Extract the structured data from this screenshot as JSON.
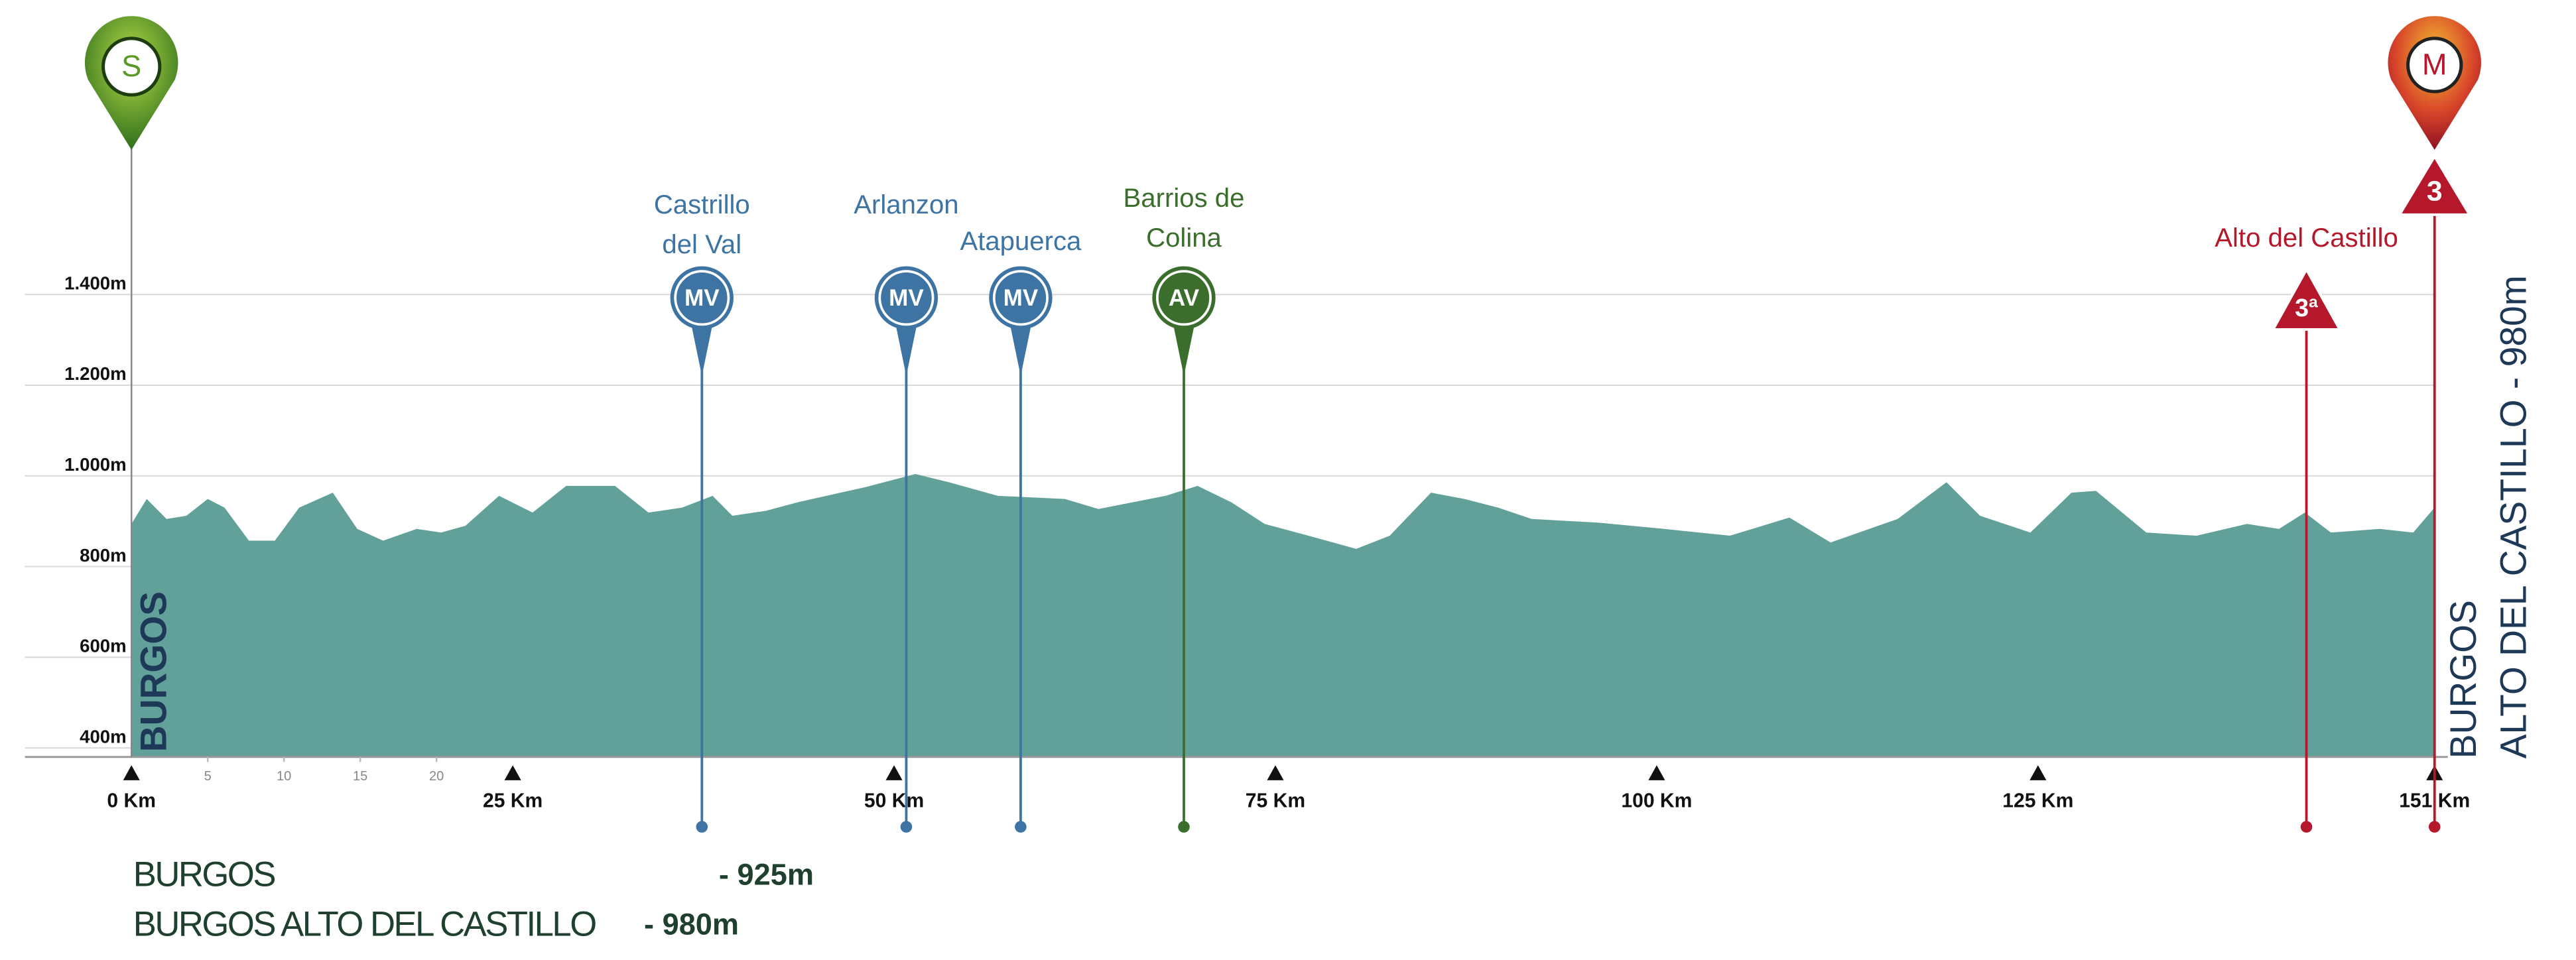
{
  "chart_data": {
    "type": "area",
    "color": "#62a09a",
    "x": [
      0,
      1,
      2.3,
      3.6,
      5,
      6.1,
      7.7,
      9.4,
      11,
      13.2,
      14.8,
      16.5,
      18.7,
      20.3,
      21.9,
      24.1,
      26.3,
      28.5,
      31.7,
      33.9,
      36.1,
      38.1,
      39.4,
      41.6,
      43.7,
      48.1,
      51.4,
      53.6,
      56.8,
      61.2,
      63.4,
      67.8,
      69.9,
      72.1,
      74.3,
      77.6,
      80.3,
      82.5,
      85.2,
      87.4,
      89.6,
      91.8,
      96.1,
      100.5,
      104.8,
      108.7,
      111.4,
      115.8,
      119,
      121.2,
      124.5,
      127.2,
      128.8,
      132.1,
      135.4,
      138.7,
      140.8,
      142.5,
      144.2,
      147.4,
      149.6,
      151
    ],
    "values": [
      894,
      949,
      905,
      912,
      949,
      930,
      857,
      857,
      930,
      963,
      883,
      857,
      883,
      875,
      890,
      956,
      919,
      978,
      978,
      919,
      930,
      956,
      912,
      923,
      942,
      975,
      1004,
      986,
      956,
      949,
      927,
      956,
      978,
      942,
      894,
      864,
      839,
      868,
      963,
      949,
      930,
      905,
      897,
      883,
      868,
      908,
      853,
      905,
      986,
      912,
      875,
      963,
      967,
      875,
      868,
      894,
      883,
      919,
      875,
      883,
      875,
      930
    ],
    "xlim": [
      0,
      151
    ],
    "ylim": [
      380,
      1400
    ],
    "xticks": [
      {
        "value": 0,
        "label": "0 Km"
      },
      {
        "value": 25,
        "label": "25 Km"
      },
      {
        "value": 50,
        "label": "50 Km"
      },
      {
        "value": 75,
        "label": "75 Km"
      },
      {
        "value": 100,
        "label": "100 Km"
      },
      {
        "value": 125,
        "label": "125 Km"
      },
      {
        "value": 151,
        "label": "151 Km"
      }
    ],
    "xminor_ticks": [
      5,
      10,
      15,
      20
    ],
    "yticks": [
      {
        "value": 400,
        "label": "400m"
      },
      {
        "value": 600,
        "label": "600m"
      },
      {
        "value": 800,
        "label": "800m"
      },
      {
        "value": 1000,
        "label": "1.000m"
      },
      {
        "value": 1200,
        "label": "1.200m"
      },
      {
        "value": 1400,
        "label": "1.400m"
      }
    ],
    "grid": true,
    "markers": [
      {
        "name_lines": [
          "Castrillo",
          "del Val"
        ],
        "badge": "MV",
        "km": 37.4,
        "color": "#3d74a3",
        "shape": "circle"
      },
      {
        "name_lines": [
          "Arlanzon"
        ],
        "badge": "MV",
        "km": 50.8,
        "color": "#3d74a3",
        "shape": "circle"
      },
      {
        "name_lines": [
          "Atapuerca"
        ],
        "badge": "MV",
        "km": 58.3,
        "color": "#3d74a3",
        "shape": "circle"
      },
      {
        "name_lines": [
          "Barrios de",
          "Colina"
        ],
        "badge": "AV",
        "km": 69,
        "color": "#3b6e2c",
        "shape": "circle"
      },
      {
        "name_lines": [
          "Alto del Castillo"
        ],
        "badge": "3ª",
        "km": 142.6,
        "color": "#b5172b",
        "shape": "triangle"
      }
    ],
    "start": {
      "badge": "S",
      "name": "BURGOS"
    },
    "finish": {
      "badge": "M",
      "category": "3",
      "name": "BURGOS",
      "name_2": "ALTO DEL CASTILLO - 980m"
    },
    "summary": [
      {
        "name": "BURGOS",
        "elevation": "- 925m"
      },
      {
        "name": "BURGOS ALTO DEL CASTILLO",
        "elevation": "- 980m"
      }
    ]
  }
}
